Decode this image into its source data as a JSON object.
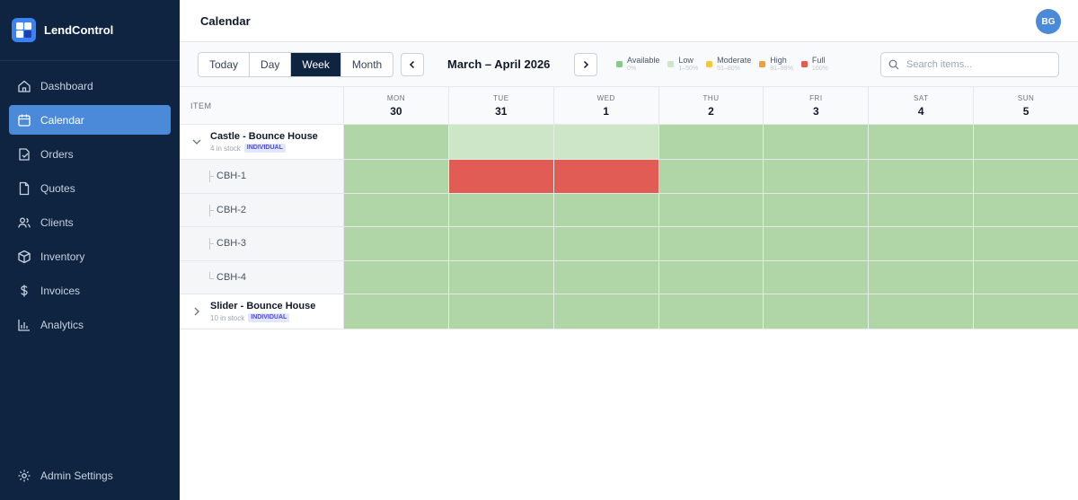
{
  "app": {
    "name": "LendControl"
  },
  "sidebar": {
    "items": [
      {
        "label": "Dashboard",
        "icon": "home-icon"
      },
      {
        "label": "Calendar",
        "icon": "calendar-icon",
        "active": true
      },
      {
        "label": "Orders",
        "icon": "orders-icon"
      },
      {
        "label": "Quotes",
        "icon": "document-icon"
      },
      {
        "label": "Clients",
        "icon": "users-icon"
      },
      {
        "label": "Inventory",
        "icon": "box-icon"
      },
      {
        "label": "Invoices",
        "icon": "dollar-icon"
      },
      {
        "label": "Analytics",
        "icon": "chart-icon"
      }
    ],
    "admin_label": "Admin Settings"
  },
  "header": {
    "title": "Calendar",
    "avatar_initials": "BG"
  },
  "toolbar": {
    "views": [
      "Today",
      "Day",
      "Week",
      "Month"
    ],
    "active_view": "Week",
    "range_label": "March – April 2026",
    "search_placeholder": "Search items..."
  },
  "legend": [
    {
      "label": "Available",
      "range": "0%",
      "color": "#8bc98a"
    },
    {
      "label": "Low",
      "range": "1–50%",
      "color": "#cde6c7"
    },
    {
      "label": "Moderate",
      "range": "51–80%",
      "color": "#f5c842"
    },
    {
      "label": "High",
      "range": "81–99%",
      "color": "#f0a03b"
    },
    {
      "label": "Full",
      "range": "100%",
      "color": "#e05c54"
    }
  ],
  "grid": {
    "item_header": "ITEM",
    "days": [
      {
        "name": "MON",
        "num": "30"
      },
      {
        "name": "TUE",
        "num": "31"
      },
      {
        "name": "WED",
        "num": "1"
      },
      {
        "name": "THU",
        "num": "2"
      },
      {
        "name": "FRI",
        "num": "3"
      },
      {
        "name": "SAT",
        "num": "4"
      },
      {
        "name": "SUN",
        "num": "5"
      }
    ],
    "rows": [
      {
        "type": "group",
        "expanded": true,
        "title": "Castle - Bounce House",
        "stock": "4 in stock",
        "badge": "INDIVIDUAL",
        "status": [
          "available",
          "low",
          "low",
          "available",
          "available",
          "available",
          "available"
        ]
      },
      {
        "type": "child",
        "label": "CBH-1",
        "status": [
          "available",
          "full",
          "full",
          "available",
          "available",
          "available",
          "available"
        ]
      },
      {
        "type": "child",
        "label": "CBH-2",
        "status": [
          "available",
          "available",
          "available",
          "available",
          "available",
          "available",
          "available"
        ]
      },
      {
        "type": "child",
        "label": "CBH-3",
        "status": [
          "available",
          "available",
          "available",
          "available",
          "available",
          "available",
          "available"
        ]
      },
      {
        "type": "child",
        "label": "CBH-4",
        "last": true,
        "status": [
          "available",
          "available",
          "available",
          "available",
          "available",
          "available",
          "available"
        ]
      },
      {
        "type": "group",
        "expanded": false,
        "title": "Slider - Bounce House",
        "stock": "10 in stock",
        "badge": "INDIVIDUAL",
        "status": [
          "available",
          "available",
          "available",
          "available",
          "available",
          "available",
          "available"
        ]
      }
    ]
  }
}
